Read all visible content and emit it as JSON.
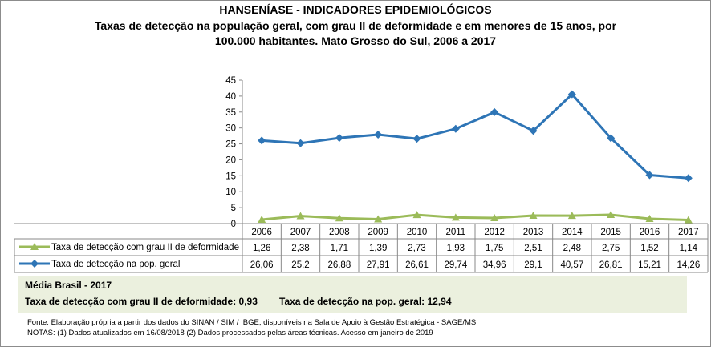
{
  "header": {
    "title": "HANSENÍASE - INDICADORES EPIDEMIOLÓGICOS",
    "subtitle_line1": "Taxas de detecção na população geral, com grau II de deformidade e em menores de 15 anos, por",
    "subtitle_line2": "100.000 habitantes. Mato Grosso do Sul, 2006 a 2017"
  },
  "chart_data": {
    "type": "line",
    "categories": [
      "2006",
      "2007",
      "2008",
      "2009",
      "2010",
      "2011",
      "2012",
      "2013",
      "2014",
      "2015",
      "2016",
      "2017"
    ],
    "ylim": [
      0,
      45
    ],
    "yticks": [
      0,
      5,
      10,
      15,
      20,
      25,
      30,
      35,
      40,
      45
    ],
    "series": [
      {
        "name": "Taxa de detecção com grau II de deformidade",
        "values": [
          1.26,
          2.38,
          1.71,
          1.39,
          2.73,
          1.93,
          1.75,
          2.51,
          2.48,
          2.75,
          1.52,
          1.14
        ],
        "labels": [
          "1,26",
          "2,38",
          "1,71",
          "1,39",
          "2,73",
          "1,93",
          "1,75",
          "2,51",
          "2,48",
          "2,75",
          "1,52",
          "1,14"
        ],
        "color": "#9bbb59",
        "marker": "triangle"
      },
      {
        "name": "Taxa de detecção na pop. geral",
        "values": [
          26.06,
          25.2,
          26.88,
          27.91,
          26.61,
          29.74,
          34.96,
          29.1,
          40.57,
          26.81,
          15.21,
          14.26
        ],
        "labels": [
          "26,06",
          "25,2",
          "26,88",
          "27,91",
          "26,61",
          "29,74",
          "34,96",
          "29,1",
          "40,57",
          "26,81",
          "15,21",
          "14,26"
        ],
        "color": "#2e75b6",
        "marker": "diamond"
      }
    ],
    "grid": false
  },
  "summary": {
    "title": "Média Brasil - 2017",
    "grau2": "Taxa de detecção com grau II de deformidade: 0,93",
    "popgeral": "Taxa de detecção na pop. geral: 12,94"
  },
  "footer": {
    "source": "Fonte: Elaboração própria a partir dos dados do SINAN / SIM / IBGE, disponíveis na Sala de Apoio à Gestão Estratégica - SAGE/MS",
    "notes": "NOTAS: (1) Dados atualizados em 16/08/2018 (2) Dados processados pelas áreas técnicas. Acesso em janeiro de 2019"
  }
}
